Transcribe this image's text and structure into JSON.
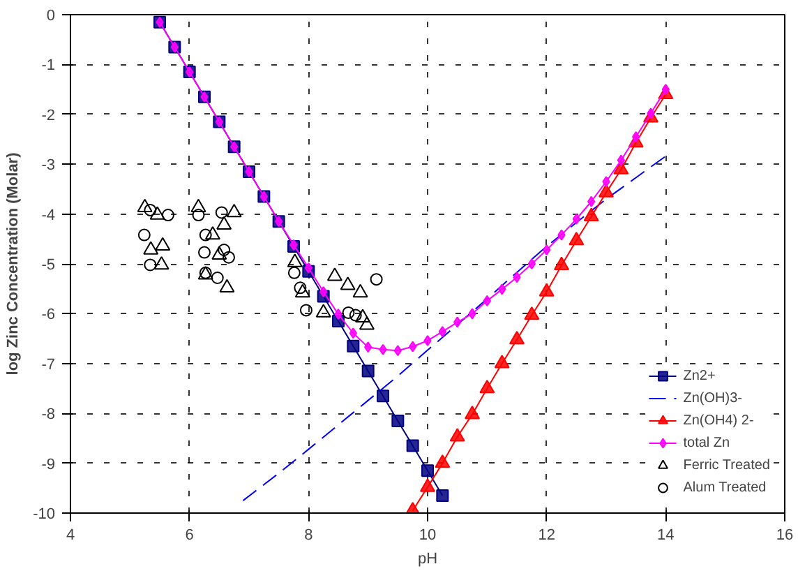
{
  "chart_data": {
    "type": "line",
    "xlabel": "pH",
    "ylabel": "log Zinc Concentration (Molar)",
    "xlim": [
      4,
      16
    ],
    "ylim": [
      -10,
      0
    ],
    "xticks": [
      4,
      6,
      8,
      10,
      12,
      14,
      16
    ],
    "yticks": [
      -10,
      -9,
      -8,
      -7,
      -6,
      -5,
      -4,
      -3,
      -2,
      -1,
      0
    ],
    "grid": true,
    "legend": "bottom right",
    "series": [
      {
        "name": "Zn2+",
        "color": "#000080",
        "marker": "square",
        "line_style": "solid",
        "x": [
          5.5,
          5.75,
          6.0,
          6.25,
          6.5,
          6.75,
          7.0,
          7.25,
          7.5,
          7.75,
          8.0,
          8.25,
          8.5,
          8.75,
          9.0,
          9.25,
          9.5,
          9.75,
          10.0,
          10.25
        ],
        "values": [
          -0.15,
          -0.65,
          -1.15,
          -1.65,
          -2.15,
          -2.65,
          -3.15,
          -3.65,
          -4.15,
          -4.65,
          -5.15,
          -5.65,
          -6.15,
          -6.65,
          -7.15,
          -7.65,
          -8.15,
          -8.65,
          -9.15,
          -9.65
        ]
      },
      {
        "name": "Zn(OH)3-",
        "color": "#0000ff",
        "marker": "none",
        "line_style": "dashed",
        "x": [
          6.9,
          7.5,
          8.0,
          8.5,
          9.0,
          9.5,
          10.0,
          10.5,
          11.0,
          11.5,
          12.0,
          12.5,
          13.0,
          13.5,
          14.0
        ],
        "values": [
          -9.75,
          -9.2,
          -8.72,
          -8.23,
          -7.74,
          -7.25,
          -6.73,
          -6.22,
          -5.7,
          -5.17,
          -4.65,
          -4.17,
          -3.7,
          -3.27,
          -2.84
        ]
      },
      {
        "name": "Zn(OH4) 2-",
        "color": "#ff0000",
        "marker": "triangle",
        "line_style": "solid",
        "x": [
          9.75,
          10.0,
          10.25,
          10.5,
          10.75,
          11.0,
          11.25,
          11.5,
          11.75,
          12.0,
          12.25,
          12.5,
          12.75,
          13.0,
          13.25,
          13.5,
          13.75,
          14.0
        ],
        "values": [
          -9.95,
          -9.48,
          -9.0,
          -8.47,
          -8.02,
          -7.5,
          -7.0,
          -6.52,
          -6.03,
          -5.56,
          -5.03,
          -4.53,
          -4.05,
          -3.57,
          -3.11,
          -2.57,
          -2.07,
          -1.6
        ]
      },
      {
        "name": "total Zn",
        "color": "#ff00ff",
        "marker": "diamond",
        "line_style": "solid",
        "x": [
          5.5,
          5.75,
          6.0,
          6.25,
          6.5,
          6.75,
          7.0,
          7.25,
          7.5,
          7.75,
          8.0,
          8.25,
          8.5,
          8.75,
          9.0,
          9.25,
          9.5,
          9.75,
          10.0,
          10.25,
          10.5,
          10.75,
          11.0,
          11.25,
          11.5,
          11.75,
          12.0,
          12.25,
          12.5,
          12.75,
          13.0,
          13.25,
          13.5,
          13.75,
          14.0
        ],
        "values": [
          -0.15,
          -0.65,
          -1.15,
          -1.65,
          -2.15,
          -2.65,
          -3.15,
          -3.65,
          -4.15,
          -4.62,
          -5.08,
          -5.56,
          -6.01,
          -6.39,
          -6.67,
          -6.72,
          -6.74,
          -6.66,
          -6.54,
          -6.36,
          -6.17,
          -6.0,
          -5.74,
          -5.51,
          -5.27,
          -5.0,
          -4.72,
          -4.42,
          -4.1,
          -3.75,
          -3.35,
          -2.92,
          -2.45,
          -1.98,
          -1.5
        ]
      },
      {
        "name": "Ferric Treated",
        "type": "scatter",
        "color": "#000000",
        "marker": "triangle",
        "x": [
          5.25,
          5.46,
          5.55,
          5.53,
          5.35,
          6.15,
          6.75,
          6.39,
          6.58,
          6.5,
          6.27,
          6.63,
          7.77,
          7.9,
          8.25,
          8.44,
          8.66,
          8.87,
          8.91,
          8.98
        ],
        "values": [
          -3.87,
          -4.02,
          -4.64,
          -5.02,
          -4.72,
          -3.87,
          -3.97,
          -4.42,
          -4.22,
          -4.82,
          -5.22,
          -5.48,
          -4.97,
          -5.58,
          -5.98,
          -5.25,
          -5.43,
          -5.58,
          -6.08,
          -6.23
        ]
      },
      {
        "name": "Alum Treated",
        "type": "scatter",
        "color": "#000000",
        "marker": "circle",
        "x": [
          5.34,
          5.64,
          5.24,
          5.34,
          6.15,
          6.54,
          6.27,
          6.25,
          6.58,
          6.66,
          6.47,
          6.27,
          7.76,
          7.86,
          7.96,
          8.67,
          8.79,
          9.14
        ],
        "values": [
          -3.92,
          -4.02,
          -4.42,
          -5.02,
          -4.02,
          -3.97,
          -4.42,
          -4.77,
          -4.72,
          -4.87,
          -5.28,
          -5.18,
          -5.18,
          -5.48,
          -5.93,
          -5.98,
          -6.03,
          -5.31
        ]
      }
    ]
  }
}
